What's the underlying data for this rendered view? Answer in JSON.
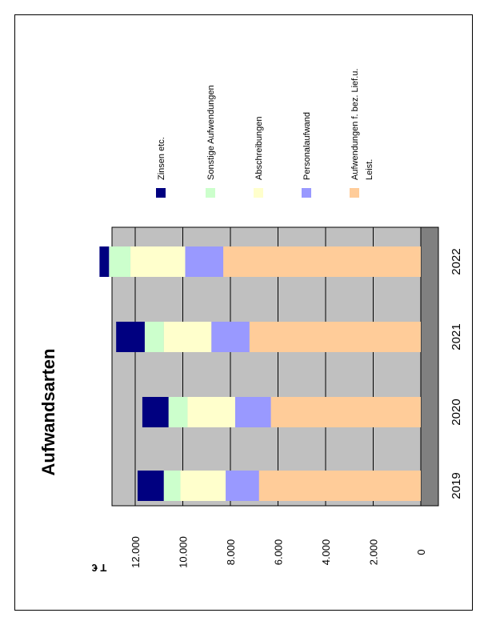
{
  "chart_data": {
    "type": "bar",
    "stacked": true,
    "orientation": "rotated-90",
    "title": "Aufwandsarten",
    "unit_label": "T €",
    "categories": [
      "2019",
      "2020",
      "2021",
      "2022"
    ],
    "ylim": [
      0,
      14000
    ],
    "yticks": [
      {
        "value": 0,
        "label": "0"
      },
      {
        "value": 2000,
        "label": "2.000"
      },
      {
        "value": 4000,
        "label": "4.000"
      },
      {
        "value": 6000,
        "label": "6.000"
      },
      {
        "value": 8000,
        "label": "8.000"
      },
      {
        "value": 10000,
        "label": "10.000"
      },
      {
        "value": 12000,
        "label": "12.000"
      }
    ],
    "grid": true,
    "series": [
      {
        "name": "Aufwendungen f. bez. Lief.u. Leist.",
        "color": "#FFCC99",
        "values": [
          6800,
          6300,
          7200,
          8300
        ]
      },
      {
        "name": "Personalaufwand",
        "color": "#9999FF",
        "values": [
          1400,
          1500,
          1600,
          1600
        ]
      },
      {
        "name": "Abschreibungen",
        "color": "#FFFFCC",
        "values": [
          1900,
          2000,
          2000,
          2300
        ]
      },
      {
        "name": "Sonstige Aufwendungen",
        "color": "#CCFFCC",
        "values": [
          700,
          800,
          800,
          900
        ]
      },
      {
        "name": "Zinsen etc.",
        "color": "#000080",
        "values": [
          1100,
          1100,
          1200,
          400
        ]
      }
    ],
    "legend_position": "top",
    "colors": {
      "plot_bg": "#C0C0C0",
      "floor": "#808080",
      "grid": "#000000"
    }
  }
}
